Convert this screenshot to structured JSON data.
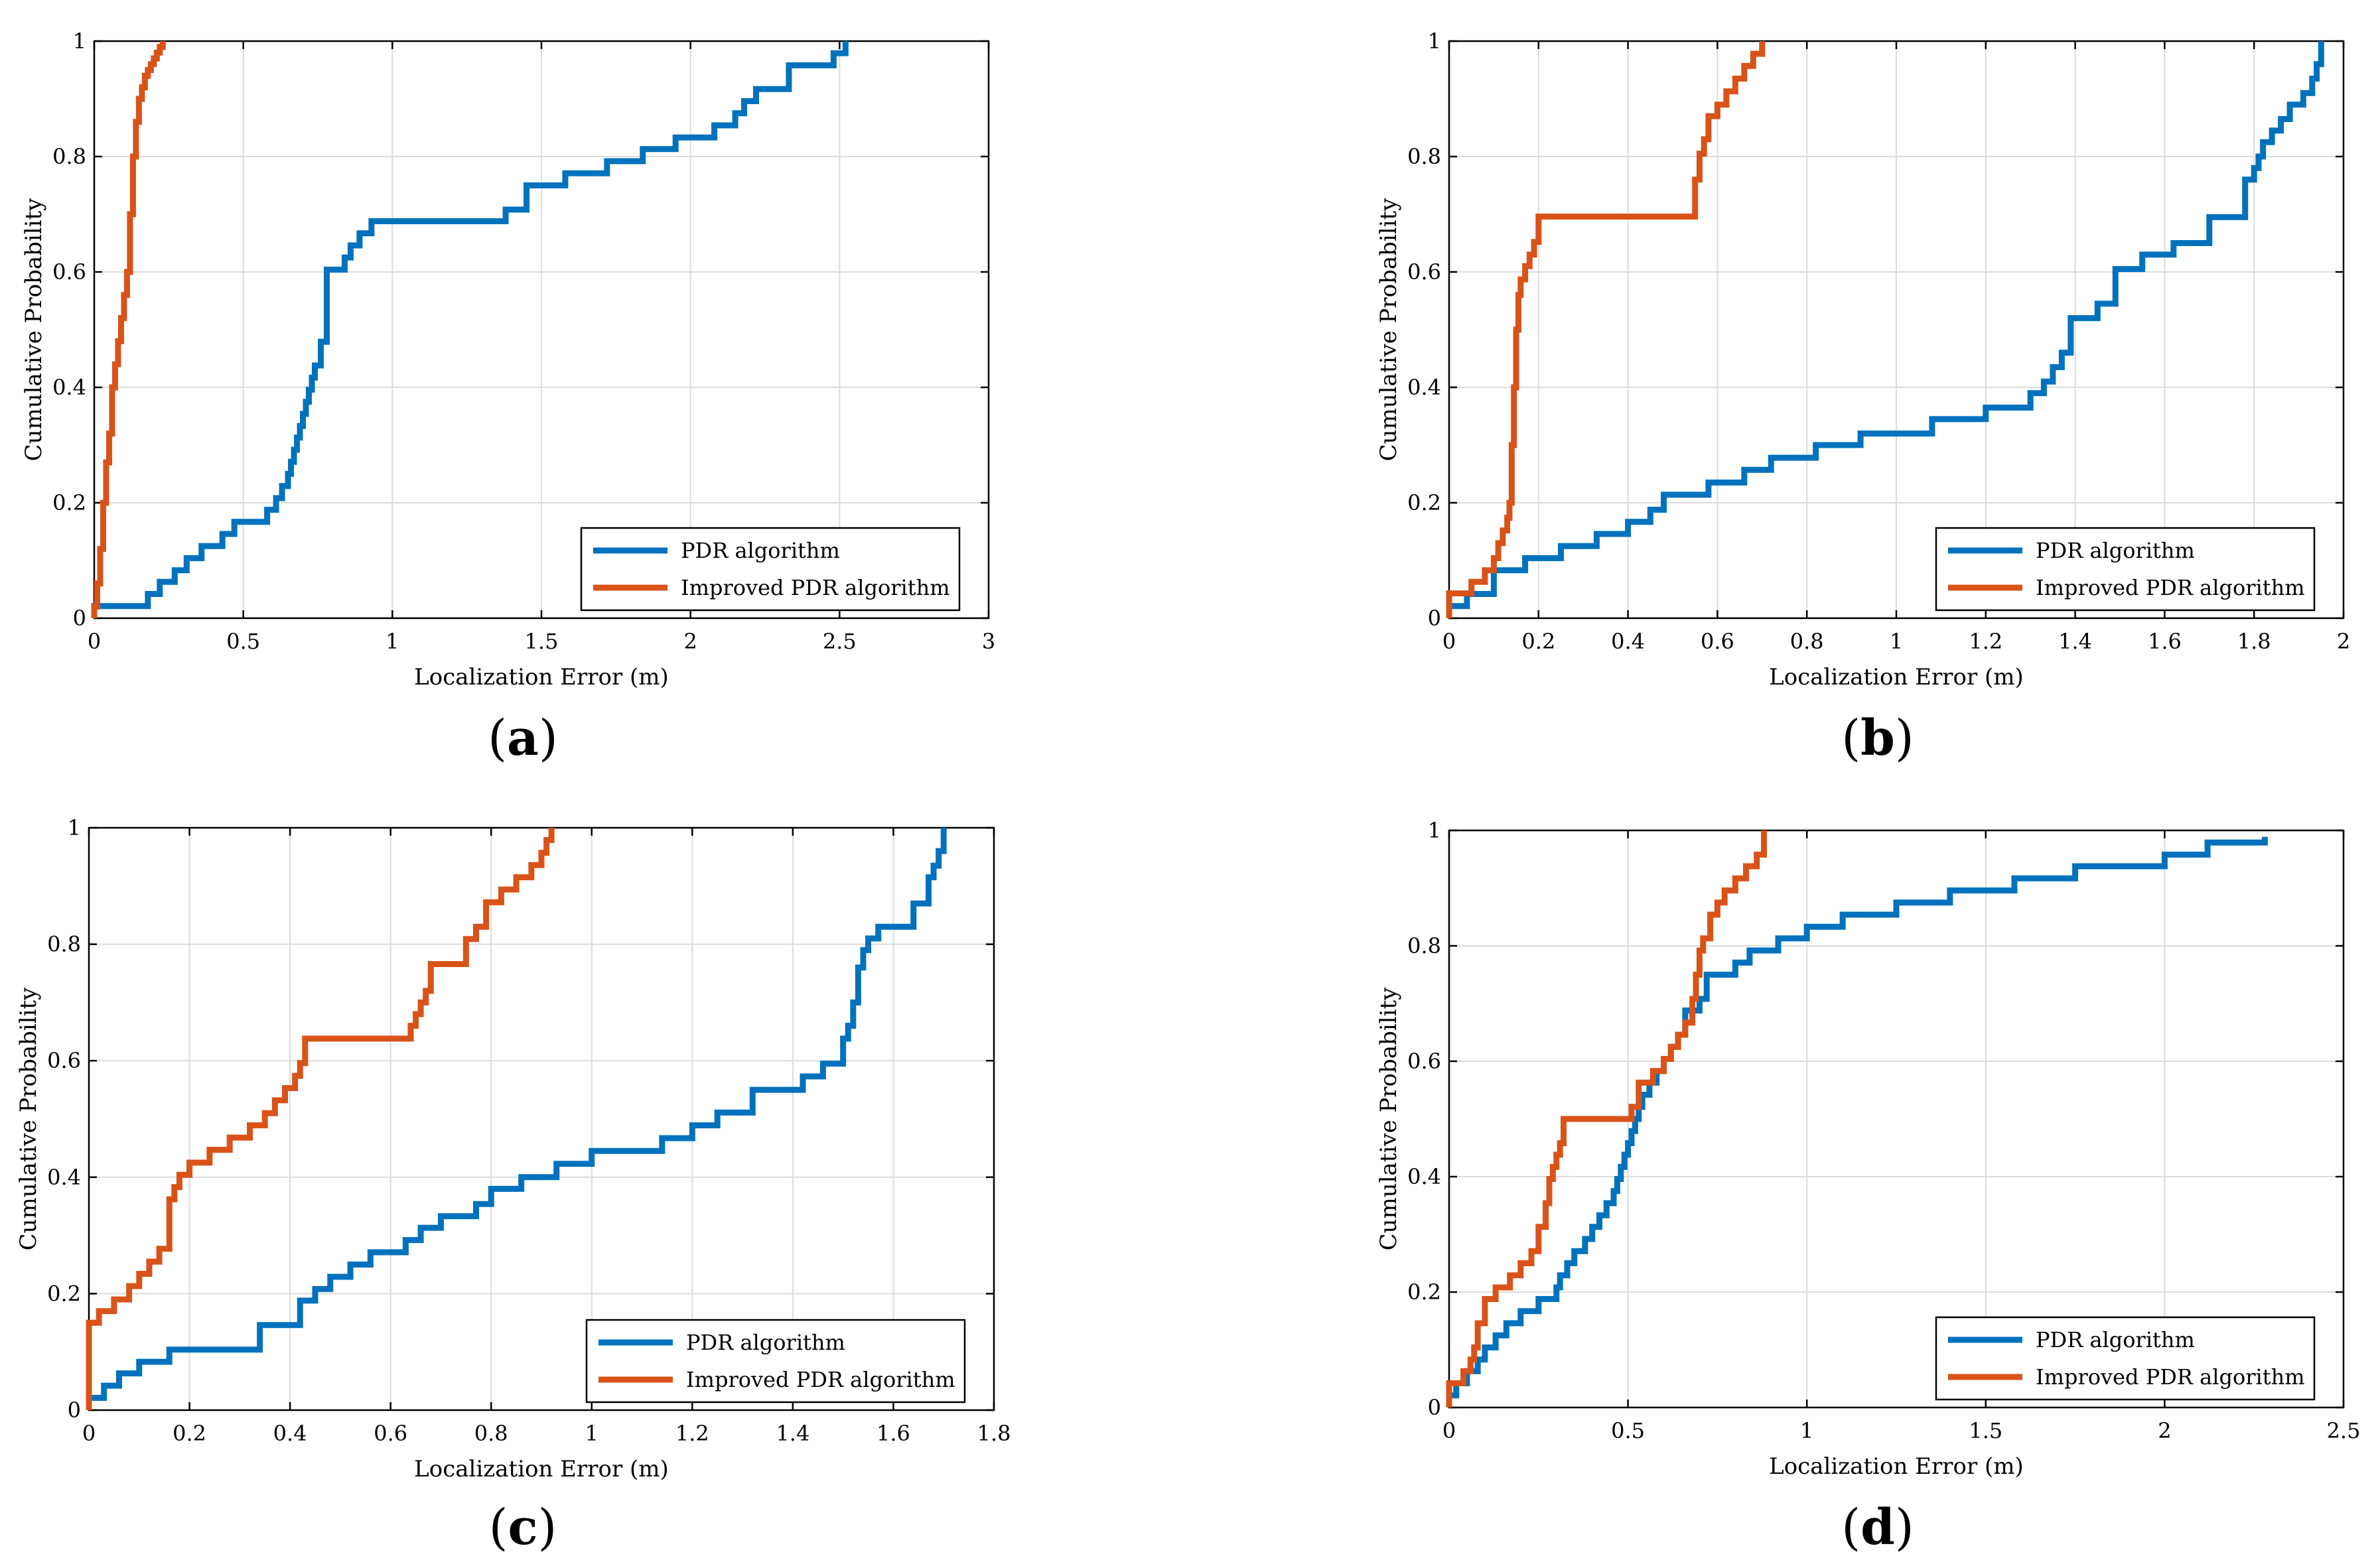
{
  "figure": {
    "panels": [
      {
        "label": "a",
        "caption_open": "(",
        "caption_close": ")"
      },
      {
        "label": "b",
        "caption_open": "(",
        "caption_close": ")"
      },
      {
        "label": "c",
        "caption_open": "(",
        "caption_close": ")"
      },
      {
        "label": "d",
        "caption_open": "(",
        "caption_close": ")"
      }
    ]
  },
  "colors": {
    "pdr": "#0072BD",
    "improved": "#D95319",
    "grid": "#dcdcdc",
    "axis": "#000000"
  },
  "chart_data": [
    {
      "type": "line",
      "panel": "a",
      "title": "",
      "xlabel": "Localization Error (m)",
      "ylabel": "Cumulative Probability",
      "xlim": [
        0,
        3
      ],
      "ylim": [
        0,
        1
      ],
      "xticks": [
        0,
        0.5,
        1,
        1.5,
        2,
        2.5,
        3
      ],
      "xtick_labels": [
        "0",
        "0.5",
        "1",
        "1.5",
        "2",
        "2.5",
        "3"
      ],
      "yticks": [
        0,
        0.2,
        0.4,
        0.6,
        0.8,
        1
      ],
      "ytick_labels": [
        "0",
        "0.2",
        "0.4",
        "0.6",
        "0.8",
        "1"
      ],
      "grid": true,
      "legend_position": "bottom-right",
      "series": [
        {
          "name": "PDR algorithm",
          "color": "#0072BD",
          "step": true,
          "x": [
            0,
            0.18,
            0.22,
            0.27,
            0.31,
            0.36,
            0.43,
            0.47,
            0.58,
            0.61,
            0.63,
            0.65,
            0.66,
            0.67,
            0.68,
            0.69,
            0.7,
            0.71,
            0.72,
            0.73,
            0.74,
            0.76,
            0.78,
            0.84,
            0.86,
            0.89,
            0.93,
            0.97,
            1.38,
            1.45,
            1.58,
            1.72,
            1.84,
            1.95,
            2.08,
            2.15,
            2.18,
            2.22,
            2.33,
            2.48,
            2.52
          ],
          "y": [
            0.021,
            0.042,
            0.063,
            0.083,
            0.104,
            0.125,
            0.146,
            0.167,
            0.188,
            0.208,
            0.229,
            0.25,
            0.271,
            0.292,
            0.313,
            0.333,
            0.354,
            0.375,
            0.396,
            0.417,
            0.438,
            0.479,
            0.604,
            0.625,
            0.646,
            0.667,
            0.688,
            0.688,
            0.708,
            0.75,
            0.771,
            0.792,
            0.813,
            0.833,
            0.854,
            0.875,
            0.896,
            0.917,
            0.958,
            0.979,
            1.0
          ]
        },
        {
          "name": "Improved PDR algorithm",
          "color": "#D95319",
          "step": true,
          "x": [
            0,
            0.01,
            0.02,
            0.03,
            0.04,
            0.05,
            0.06,
            0.07,
            0.08,
            0.09,
            0.1,
            0.11,
            0.12,
            0.13,
            0.14,
            0.15,
            0.16,
            0.17,
            0.18,
            0.19,
            0.2,
            0.21,
            0.22,
            0.23
          ],
          "y": [
            0.02,
            0.06,
            0.12,
            0.2,
            0.27,
            0.32,
            0.4,
            0.44,
            0.48,
            0.52,
            0.56,
            0.6,
            0.7,
            0.8,
            0.86,
            0.9,
            0.92,
            0.94,
            0.95,
            0.96,
            0.97,
            0.98,
            0.99,
            1.0
          ]
        }
      ]
    },
    {
      "type": "line",
      "panel": "b",
      "title": "",
      "xlabel": "Localization Error (m)",
      "ylabel": "Cumulative Probability",
      "xlim": [
        0,
        2
      ],
      "ylim": [
        0,
        1
      ],
      "xticks": [
        0,
        0.2,
        0.4,
        0.6,
        0.8,
        1,
        1.2,
        1.4,
        1.6,
        1.8,
        2
      ],
      "xtick_labels": [
        "0",
        "0.2",
        "0.4",
        "0.6",
        "0.8",
        "1",
        "1.2",
        "1.4",
        "1.6",
        "1.8",
        "2"
      ],
      "yticks": [
        0,
        0.2,
        0.4,
        0.6,
        0.8,
        1
      ],
      "ytick_labels": [
        "0",
        "0.2",
        "0.4",
        "0.6",
        "0.8",
        "1"
      ],
      "grid": true,
      "legend_position": "bottom-right",
      "series": [
        {
          "name": "PDR algorithm",
          "color": "#0072BD",
          "step": true,
          "x": [
            0,
            0.04,
            0.1,
            0.17,
            0.25,
            0.33,
            0.4,
            0.45,
            0.48,
            0.58,
            0.66,
            0.72,
            0.82,
            0.92,
            1.08,
            1.2,
            1.3,
            1.33,
            1.35,
            1.37,
            1.39,
            1.45,
            1.49,
            1.55,
            1.62,
            1.7,
            1.78,
            1.8,
            1.81,
            1.82,
            1.84,
            1.86,
            1.88,
            1.91,
            1.93,
            1.94,
            1.95
          ],
          "y": [
            0.021,
            0.042,
            0.083,
            0.104,
            0.125,
            0.146,
            0.167,
            0.188,
            0.214,
            0.235,
            0.257,
            0.278,
            0.3,
            0.32,
            0.345,
            0.365,
            0.39,
            0.41,
            0.435,
            0.46,
            0.52,
            0.545,
            0.605,
            0.63,
            0.65,
            0.695,
            0.76,
            0.78,
            0.8,
            0.825,
            0.845,
            0.865,
            0.89,
            0.91,
            0.935,
            0.96,
            1.0
          ]
        },
        {
          "name": "Improved PDR algorithm",
          "color": "#D95319",
          "step": true,
          "x": [
            0,
            0.05,
            0.08,
            0.1,
            0.11,
            0.12,
            0.13,
            0.135,
            0.14,
            0.145,
            0.15,
            0.155,
            0.16,
            0.17,
            0.18,
            0.19,
            0.2,
            0.54,
            0.55,
            0.56,
            0.57,
            0.58,
            0.6,
            0.62,
            0.64,
            0.66,
            0.68,
            0.7
          ],
          "y": [
            0.043,
            0.063,
            0.083,
            0.104,
            0.13,
            0.152,
            0.174,
            0.2,
            0.3,
            0.4,
            0.5,
            0.56,
            0.587,
            0.61,
            0.63,
            0.652,
            0.696,
            0.696,
            0.76,
            0.805,
            0.83,
            0.87,
            0.89,
            0.913,
            0.935,
            0.957,
            0.978,
            1.0
          ]
        }
      ]
    },
    {
      "type": "line",
      "panel": "c",
      "title": "",
      "xlabel": "Localization Error (m)",
      "ylabel": "Cumulative Probability",
      "xlim": [
        0,
        1.8
      ],
      "ylim": [
        0,
        1
      ],
      "xticks": [
        0,
        0.2,
        0.4,
        0.6,
        0.8,
        1,
        1.2,
        1.4,
        1.6,
        1.8
      ],
      "xtick_labels": [
        "0",
        "0.2",
        "0.4",
        "0.6",
        "0.8",
        "1",
        "1.2",
        "1.4",
        "1.6",
        "1.8"
      ],
      "yticks": [
        0,
        0.2,
        0.4,
        0.6,
        0.8,
        1
      ],
      "ytick_labels": [
        "0",
        "0.2",
        "0.4",
        "0.6",
        "0.8",
        "1"
      ],
      "grid": true,
      "legend_position": "bottom-right",
      "series": [
        {
          "name": "PDR algorithm",
          "color": "#0072BD",
          "step": true,
          "x": [
            0,
            0.03,
            0.06,
            0.1,
            0.16,
            0.34,
            0.42,
            0.45,
            0.48,
            0.52,
            0.56,
            0.63,
            0.66,
            0.7,
            0.77,
            0.8,
            0.86,
            0.93,
            1.0,
            1.14,
            1.2,
            1.25,
            1.32,
            1.42,
            1.46,
            1.5,
            1.51,
            1.52,
            1.53,
            1.54,
            1.55,
            1.57,
            1.64,
            1.67,
            1.68,
            1.69,
            1.7
          ],
          "y": [
            0.021,
            0.042,
            0.063,
            0.083,
            0.104,
            0.146,
            0.188,
            0.208,
            0.229,
            0.25,
            0.271,
            0.292,
            0.313,
            0.333,
            0.354,
            0.38,
            0.4,
            0.423,
            0.445,
            0.467,
            0.489,
            0.511,
            0.55,
            0.573,
            0.595,
            0.638,
            0.66,
            0.7,
            0.76,
            0.79,
            0.81,
            0.83,
            0.87,
            0.915,
            0.935,
            0.96,
            1.0
          ]
        },
        {
          "name": "Improved PDR algorithm",
          "color": "#D95319",
          "step": true,
          "x": [
            0,
            0.02,
            0.05,
            0.08,
            0.1,
            0.12,
            0.14,
            0.16,
            0.17,
            0.18,
            0.2,
            0.24,
            0.28,
            0.32,
            0.35,
            0.37,
            0.39,
            0.41,
            0.42,
            0.43,
            0.64,
            0.65,
            0.66,
            0.67,
            0.68,
            0.75,
            0.77,
            0.79,
            0.82,
            0.85,
            0.88,
            0.9,
            0.91,
            0.92
          ],
          "y": [
            0.15,
            0.17,
            0.19,
            0.213,
            0.234,
            0.255,
            0.277,
            0.362,
            0.383,
            0.404,
            0.425,
            0.447,
            0.468,
            0.489,
            0.51,
            0.532,
            0.553,
            0.574,
            0.596,
            0.638,
            0.66,
            0.68,
            0.7,
            0.72,
            0.766,
            0.809,
            0.83,
            0.872,
            0.894,
            0.915,
            0.936,
            0.957,
            0.979,
            1.0
          ]
        }
      ]
    },
    {
      "type": "line",
      "panel": "d",
      "title": "",
      "xlabel": "Localization Error (m)",
      "ylabel": "Cumulative Probability",
      "xlim": [
        0,
        2.5
      ],
      "ylim": [
        0,
        1
      ],
      "xticks": [
        0,
        0.5,
        1,
        1.5,
        2,
        2.5
      ],
      "xtick_labels": [
        "0",
        "0.5",
        "1",
        "1.5",
        "2",
        "2.5"
      ],
      "yticks": [
        0,
        0.2,
        0.4,
        0.6,
        0.8,
        1
      ],
      "ytick_labels": [
        "0",
        "0.2",
        "0.4",
        "0.6",
        "0.8",
        "1"
      ],
      "grid": true,
      "legend_position": "bottom-right",
      "series": [
        {
          "name": "PDR algorithm",
          "color": "#0072BD",
          "step": true,
          "x": [
            0,
            0.02,
            0.05,
            0.08,
            0.1,
            0.13,
            0.16,
            0.2,
            0.25,
            0.3,
            0.31,
            0.33,
            0.35,
            0.38,
            0.4,
            0.42,
            0.44,
            0.46,
            0.47,
            0.48,
            0.49,
            0.5,
            0.51,
            0.52,
            0.53,
            0.54,
            0.56,
            0.58,
            0.6,
            0.62,
            0.64,
            0.66,
            0.7,
            0.72,
            0.8,
            0.84,
            0.92,
            1.0,
            1.1,
            1.25,
            1.4,
            1.58,
            1.75,
            2.0,
            2.12,
            2.28
          ],
          "y": [
            0.021,
            0.042,
            0.063,
            0.083,
            0.104,
            0.125,
            0.146,
            0.167,
            0.188,
            0.208,
            0.229,
            0.25,
            0.271,
            0.292,
            0.313,
            0.333,
            0.354,
            0.375,
            0.396,
            0.417,
            0.438,
            0.458,
            0.479,
            0.5,
            0.521,
            0.542,
            0.563,
            0.583,
            0.604,
            0.625,
            0.646,
            0.688,
            0.708,
            0.75,
            0.771,
            0.792,
            0.813,
            0.833,
            0.854,
            0.875,
            0.896,
            0.917,
            0.938,
            0.958,
            0.979,
            0.989
          ]
        },
        {
          "name": "Improved PDR algorithm",
          "color": "#D95319",
          "step": true,
          "x": [
            0,
            0.04,
            0.06,
            0.07,
            0.08,
            0.1,
            0.13,
            0.17,
            0.2,
            0.23,
            0.25,
            0.27,
            0.28,
            0.29,
            0.3,
            0.31,
            0.32,
            0.51,
            0.53,
            0.57,
            0.6,
            0.62,
            0.64,
            0.66,
            0.68,
            0.69,
            0.7,
            0.71,
            0.73,
            0.75,
            0.77,
            0.8,
            0.83,
            0.86,
            0.88
          ],
          "y": [
            0.042,
            0.063,
            0.083,
            0.104,
            0.146,
            0.188,
            0.208,
            0.229,
            0.25,
            0.271,
            0.313,
            0.354,
            0.396,
            0.417,
            0.438,
            0.458,
            0.5,
            0.521,
            0.563,
            0.583,
            0.604,
            0.625,
            0.646,
            0.667,
            0.708,
            0.75,
            0.792,
            0.813,
            0.854,
            0.875,
            0.896,
            0.917,
            0.938,
            0.958,
            1.0
          ]
        }
      ]
    }
  ]
}
